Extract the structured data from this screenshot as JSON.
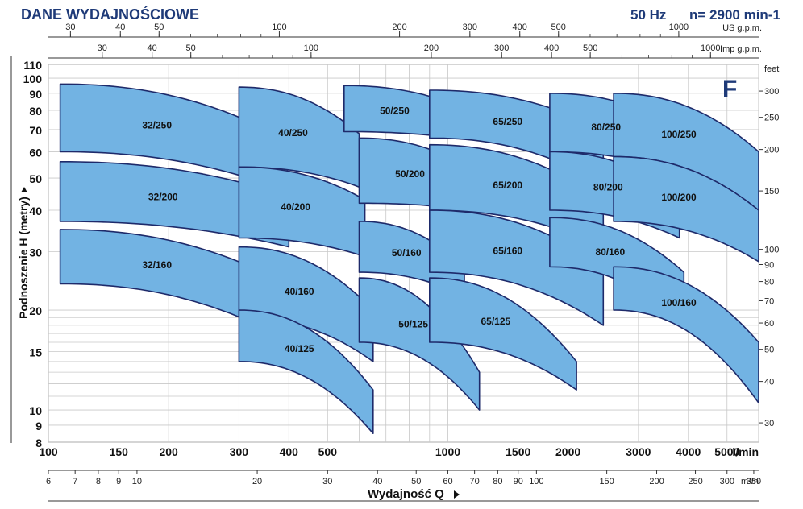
{
  "header": {
    "title": "DANE WYDAJNOŚCIOWE",
    "frequency": "50 Hz",
    "speed": "n= 2900 min-1",
    "series_letter": "F"
  },
  "chart_data": {
    "type": "area",
    "title": "DANE WYDAJNOŚCIOWE",
    "xlabel": "Wydajność Q",
    "ylabel": "Podnoszenie H (metry)",
    "x_scale": "log",
    "y_scale": "log",
    "x_primary_unit": "l/min",
    "xlim": [
      100,
      6000
    ],
    "ylim": [
      8,
      110
    ],
    "y_ticks": [
      8,
      9,
      10,
      15,
      20,
      30,
      40,
      50,
      60,
      70,
      80,
      90,
      100,
      110
    ],
    "x_ticks_lmin": [
      100,
      150,
      200,
      300,
      400,
      500,
      1000,
      1500,
      2000,
      3000,
      4000,
      5000
    ],
    "x_ticks_m3h": [
      6,
      7,
      8,
      9,
      10,
      20,
      30,
      40,
      50,
      60,
      70,
      80,
      90,
      100,
      150,
      200,
      250,
      300,
      350
    ],
    "x_unit_m3h": "m³/h",
    "x_ticks_usgpm": [
      30,
      40,
      50,
      100,
      200,
      300,
      400,
      500,
      1000
    ],
    "x_unit_usgpm": "US g.p.m.",
    "x_ticks_impgpm": [
      30,
      40,
      50,
      100,
      200,
      300,
      400,
      500,
      1000
    ],
    "x_unit_impgpm": "Imp g.p.m.",
    "y_ticks_feet": [
      30,
      40,
      50,
      60,
      70,
      80,
      90,
      100,
      150,
      200,
      250,
      300
    ],
    "y_unit_feet": "feet",
    "pump_ranges": [
      {
        "model": "32/250",
        "q_min": 107,
        "q_max": 370,
        "h_top_left": 96,
        "h_top_right": 68,
        "h_bot_left": 60,
        "h_bot_right": 47
      },
      {
        "model": "32/200",
        "q_min": 107,
        "q_max": 400,
        "h_top_left": 56,
        "h_top_right": 44,
        "h_bot_left": 37,
        "h_bot_right": 31
      },
      {
        "model": "32/160",
        "q_min": 107,
        "q_max": 370,
        "h_top_left": 35,
        "h_top_right": 25,
        "h_bot_left": 24,
        "h_bot_right": 17
      },
      {
        "model": "40/250",
        "q_min": 300,
        "q_max": 600,
        "h_top_left": 94,
        "h_top_right": 68,
        "h_bot_left": 54,
        "h_bot_right": 47
      },
      {
        "model": "40/200",
        "q_min": 300,
        "q_max": 620,
        "h_top_left": 54,
        "h_top_right": 43,
        "h_bot_left": 33,
        "h_bot_right": 29
      },
      {
        "model": "40/160",
        "q_min": 300,
        "q_max": 650,
        "h_top_left": 31,
        "h_top_right": 20,
        "h_bot_left": 19,
        "h_bot_right": 14
      },
      {
        "model": "40/125",
        "q_min": 300,
        "q_max": 650,
        "h_top_left": 20,
        "h_top_right": 11.5,
        "h_bot_left": 14,
        "h_bot_right": 8.5
      },
      {
        "model": "50/250",
        "q_min": 550,
        "q_max": 1050,
        "h_top_left": 95,
        "h_top_right": 83,
        "h_bot_left": 69,
        "h_bot_right": 66
      },
      {
        "model": "50/200",
        "q_min": 600,
        "q_max": 1150,
        "h_top_left": 66,
        "h_top_right": 53,
        "h_bot_left": 42,
        "h_bot_right": 40
      },
      {
        "model": "50/160",
        "q_min": 600,
        "q_max": 1100,
        "h_top_left": 37,
        "h_top_right": 27,
        "h_bot_left": 26,
        "h_bot_right": 22
      },
      {
        "model": "50/125",
        "q_min": 600,
        "q_max": 1200,
        "h_top_left": 25,
        "h_top_right": 13,
        "h_bot_left": 16,
        "h_bot_right": 10
      },
      {
        "model": "65/250",
        "q_min": 900,
        "q_max": 2450,
        "h_top_left": 92,
        "h_top_right": 70,
        "h_bot_left": 66,
        "h_bot_right": 48
      },
      {
        "model": "65/200",
        "q_min": 900,
        "q_max": 2450,
        "h_top_left": 63,
        "h_top_right": 43,
        "h_bot_left": 40,
        "h_bot_right": 31
      },
      {
        "model": "65/160",
        "q_min": 900,
        "q_max": 2450,
        "h_top_left": 40,
        "h_top_right": 27,
        "h_bot_left": 26,
        "h_bot_right": 18
      },
      {
        "model": "65/125",
        "q_min": 900,
        "q_max": 2100,
        "h_top_left": 25,
        "h_top_right": 14,
        "h_bot_left": 16,
        "h_bot_right": 11.5
      },
      {
        "model": "80/250",
        "q_min": 1800,
        "q_max": 3700,
        "h_top_left": 90,
        "h_top_right": 72,
        "h_bot_left": 60,
        "h_bot_right": 52
      },
      {
        "model": "80/200",
        "q_min": 1800,
        "q_max": 3800,
        "h_top_left": 60,
        "h_top_right": 44,
        "h_bot_left": 40,
        "h_bot_right": 33
      },
      {
        "model": "80/160",
        "q_min": 1800,
        "q_max": 3900,
        "h_top_left": 38,
        "h_top_right": 26,
        "h_bot_left": 27,
        "h_bot_right": 18
      },
      {
        "model": "100/250",
        "q_min": 2600,
        "q_max": 6000,
        "h_top_left": 90,
        "h_top_right": 60,
        "h_bot_left": 58,
        "h_bot_right": 40
      },
      {
        "model": "100/200",
        "q_min": 2600,
        "q_max": 6000,
        "h_top_left": 58,
        "h_top_right": 40,
        "h_bot_left": 37,
        "h_bot_right": 28
      },
      {
        "model": "100/160",
        "q_min": 2600,
        "q_max": 6000,
        "h_top_left": 27,
        "h_top_right": 16,
        "h_bot_left": 20,
        "h_bot_right": 10.5
      }
    ],
    "fill_color": "#72b3e3",
    "edge_color": "#1e2a6a",
    "legend": "none"
  }
}
